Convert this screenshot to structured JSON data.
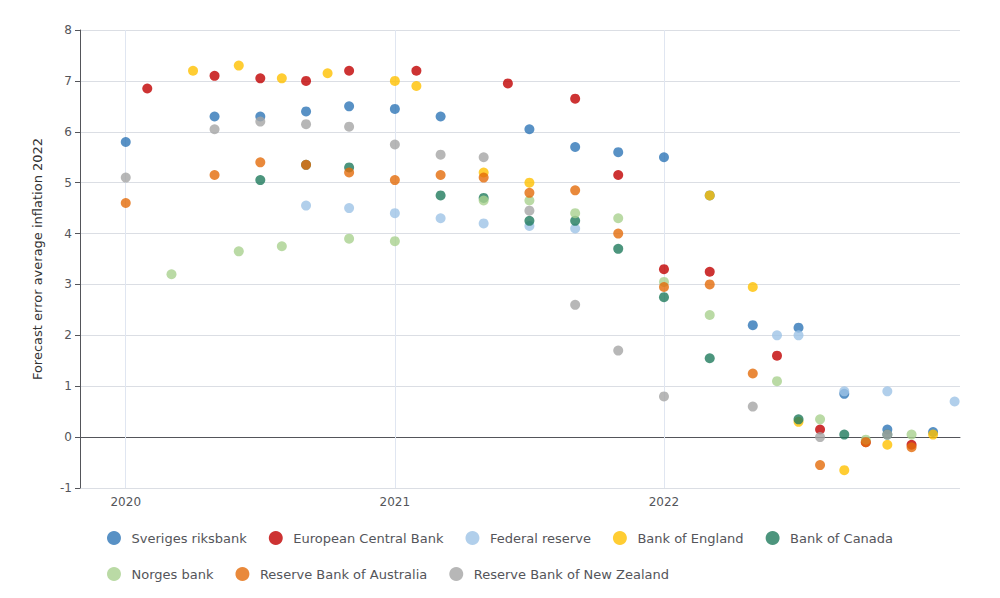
{
  "chart_data": {
    "type": "scatter",
    "ylabel": "Forecast error average inflation 2022",
    "xlim": [
      2019.83,
      2023.1
    ],
    "xticks": [
      2020,
      2021,
      2022
    ],
    "ylim": [
      -1,
      8
    ],
    "yticks": [
      -1,
      0,
      1,
      2,
      3,
      4,
      5,
      6,
      7,
      8
    ],
    "grid": true,
    "legend": "bottom",
    "series": [
      {
        "name": "Sveriges riksbank",
        "color": "#2E75B6",
        "x": [
          2020.0,
          2020.33,
          2020.5,
          2020.67,
          2020.83,
          2021.0,
          2021.17,
          2021.5,
          2021.67,
          2021.83,
          2022.0,
          2022.17,
          2022.33,
          2022.5,
          2022.67,
          2022.83,
          2023.0
        ],
        "values": [
          5.8,
          6.3,
          6.3,
          6.4,
          6.5,
          6.45,
          6.3,
          6.05,
          5.7,
          5.6,
          5.5,
          4.75,
          2.2,
          2.15,
          0.85,
          0.15,
          0.1
        ]
      },
      {
        "name": "European Central Bank",
        "color": "#C00000",
        "x": [
          2020.08,
          2020.33,
          2020.5,
          2020.67,
          2020.83,
          2021.08,
          2021.42,
          2021.67,
          2021.83,
          2022.0,
          2022.17,
          2022.42,
          2022.58,
          2022.75,
          2022.92
        ],
        "values": [
          6.85,
          7.1,
          7.05,
          7.0,
          7.2,
          7.2,
          6.95,
          6.65,
          5.15,
          3.3,
          3.25,
          1.6,
          0.15,
          -0.1,
          -0.15
        ]
      },
      {
        "name": "Federal reserve",
        "color": "#9DC3E6",
        "x": [
          2020.67,
          2020.83,
          2021.0,
          2021.17,
          2021.33,
          2021.5,
          2021.67,
          2022.42,
          2022.5,
          2022.67,
          2022.83,
          2023.08
        ],
        "values": [
          4.55,
          4.5,
          4.4,
          4.3,
          4.2,
          4.15,
          4.1,
          2.0,
          2.0,
          0.9,
          0.9,
          0.7
        ]
      },
      {
        "name": "Bank of England",
        "color": "#FFC000",
        "x": [
          2020.25,
          2020.42,
          2020.58,
          2020.75,
          2021.0,
          2021.08,
          2021.33,
          2021.5,
          2022.17,
          2022.33,
          2022.5,
          2022.67,
          2022.83,
          2023.0
        ],
        "values": [
          7.2,
          7.3,
          7.05,
          7.15,
          7.0,
          6.9,
          5.2,
          5.0,
          4.75,
          2.95,
          0.3,
          -0.65,
          -0.15,
          0.05
        ]
      },
      {
        "name": "Bank of Canada",
        "color": "#1F7A5C",
        "x": [
          2020.5,
          2020.67,
          2020.83,
          2021.17,
          2021.33,
          2021.5,
          2021.67,
          2021.83,
          2022.0,
          2022.17,
          2022.5,
          2022.67,
          2022.83
        ],
        "values": [
          5.05,
          5.35,
          5.3,
          4.75,
          4.7,
          4.25,
          4.25,
          3.7,
          2.75,
          1.55,
          0.35,
          0.05,
          0.05
        ]
      },
      {
        "name": "Norges bank",
        "color": "#A9D18E",
        "x": [
          2020.17,
          2020.42,
          2020.58,
          2020.83,
          2021.0,
          2021.33,
          2021.5,
          2021.67,
          2021.83,
          2022.0,
          2022.17,
          2022.42,
          2022.58,
          2022.75,
          2022.92
        ],
        "values": [
          3.2,
          3.65,
          3.75,
          3.9,
          3.85,
          4.65,
          4.65,
          4.4,
          4.3,
          3.05,
          2.4,
          1.1,
          0.35,
          -0.05,
          0.05
        ]
      },
      {
        "name": "Reserve Bank of Australia",
        "color": "#E36C0A",
        "x": [
          2020.0,
          2020.33,
          2020.5,
          2020.67,
          2020.83,
          2021.0,
          2021.17,
          2021.33,
          2021.5,
          2021.67,
          2021.83,
          2022.0,
          2022.17,
          2022.33,
          2022.58,
          2022.75,
          2022.92
        ],
        "values": [
          4.6,
          5.15,
          5.4,
          5.35,
          5.2,
          5.05,
          5.15,
          5.1,
          4.8,
          4.85,
          4.0,
          2.95,
          3.0,
          1.25,
          -0.55,
          -0.1,
          -0.2
        ]
      },
      {
        "name": "Reserve Bank of New Zealand",
        "color": "#A5A5A5",
        "x": [
          2020.0,
          2020.33,
          2020.5,
          2020.67,
          2020.83,
          2021.0,
          2021.17,
          2021.33,
          2021.5,
          2021.67,
          2021.83,
          2022.0,
          2022.33,
          2022.58,
          2022.83
        ],
        "values": [
          5.1,
          6.05,
          6.2,
          6.15,
          6.1,
          5.75,
          5.55,
          5.5,
          4.45,
          2.6,
          1.7,
          0.8,
          0.6,
          0.0,
          0.05
        ]
      }
    ]
  }
}
